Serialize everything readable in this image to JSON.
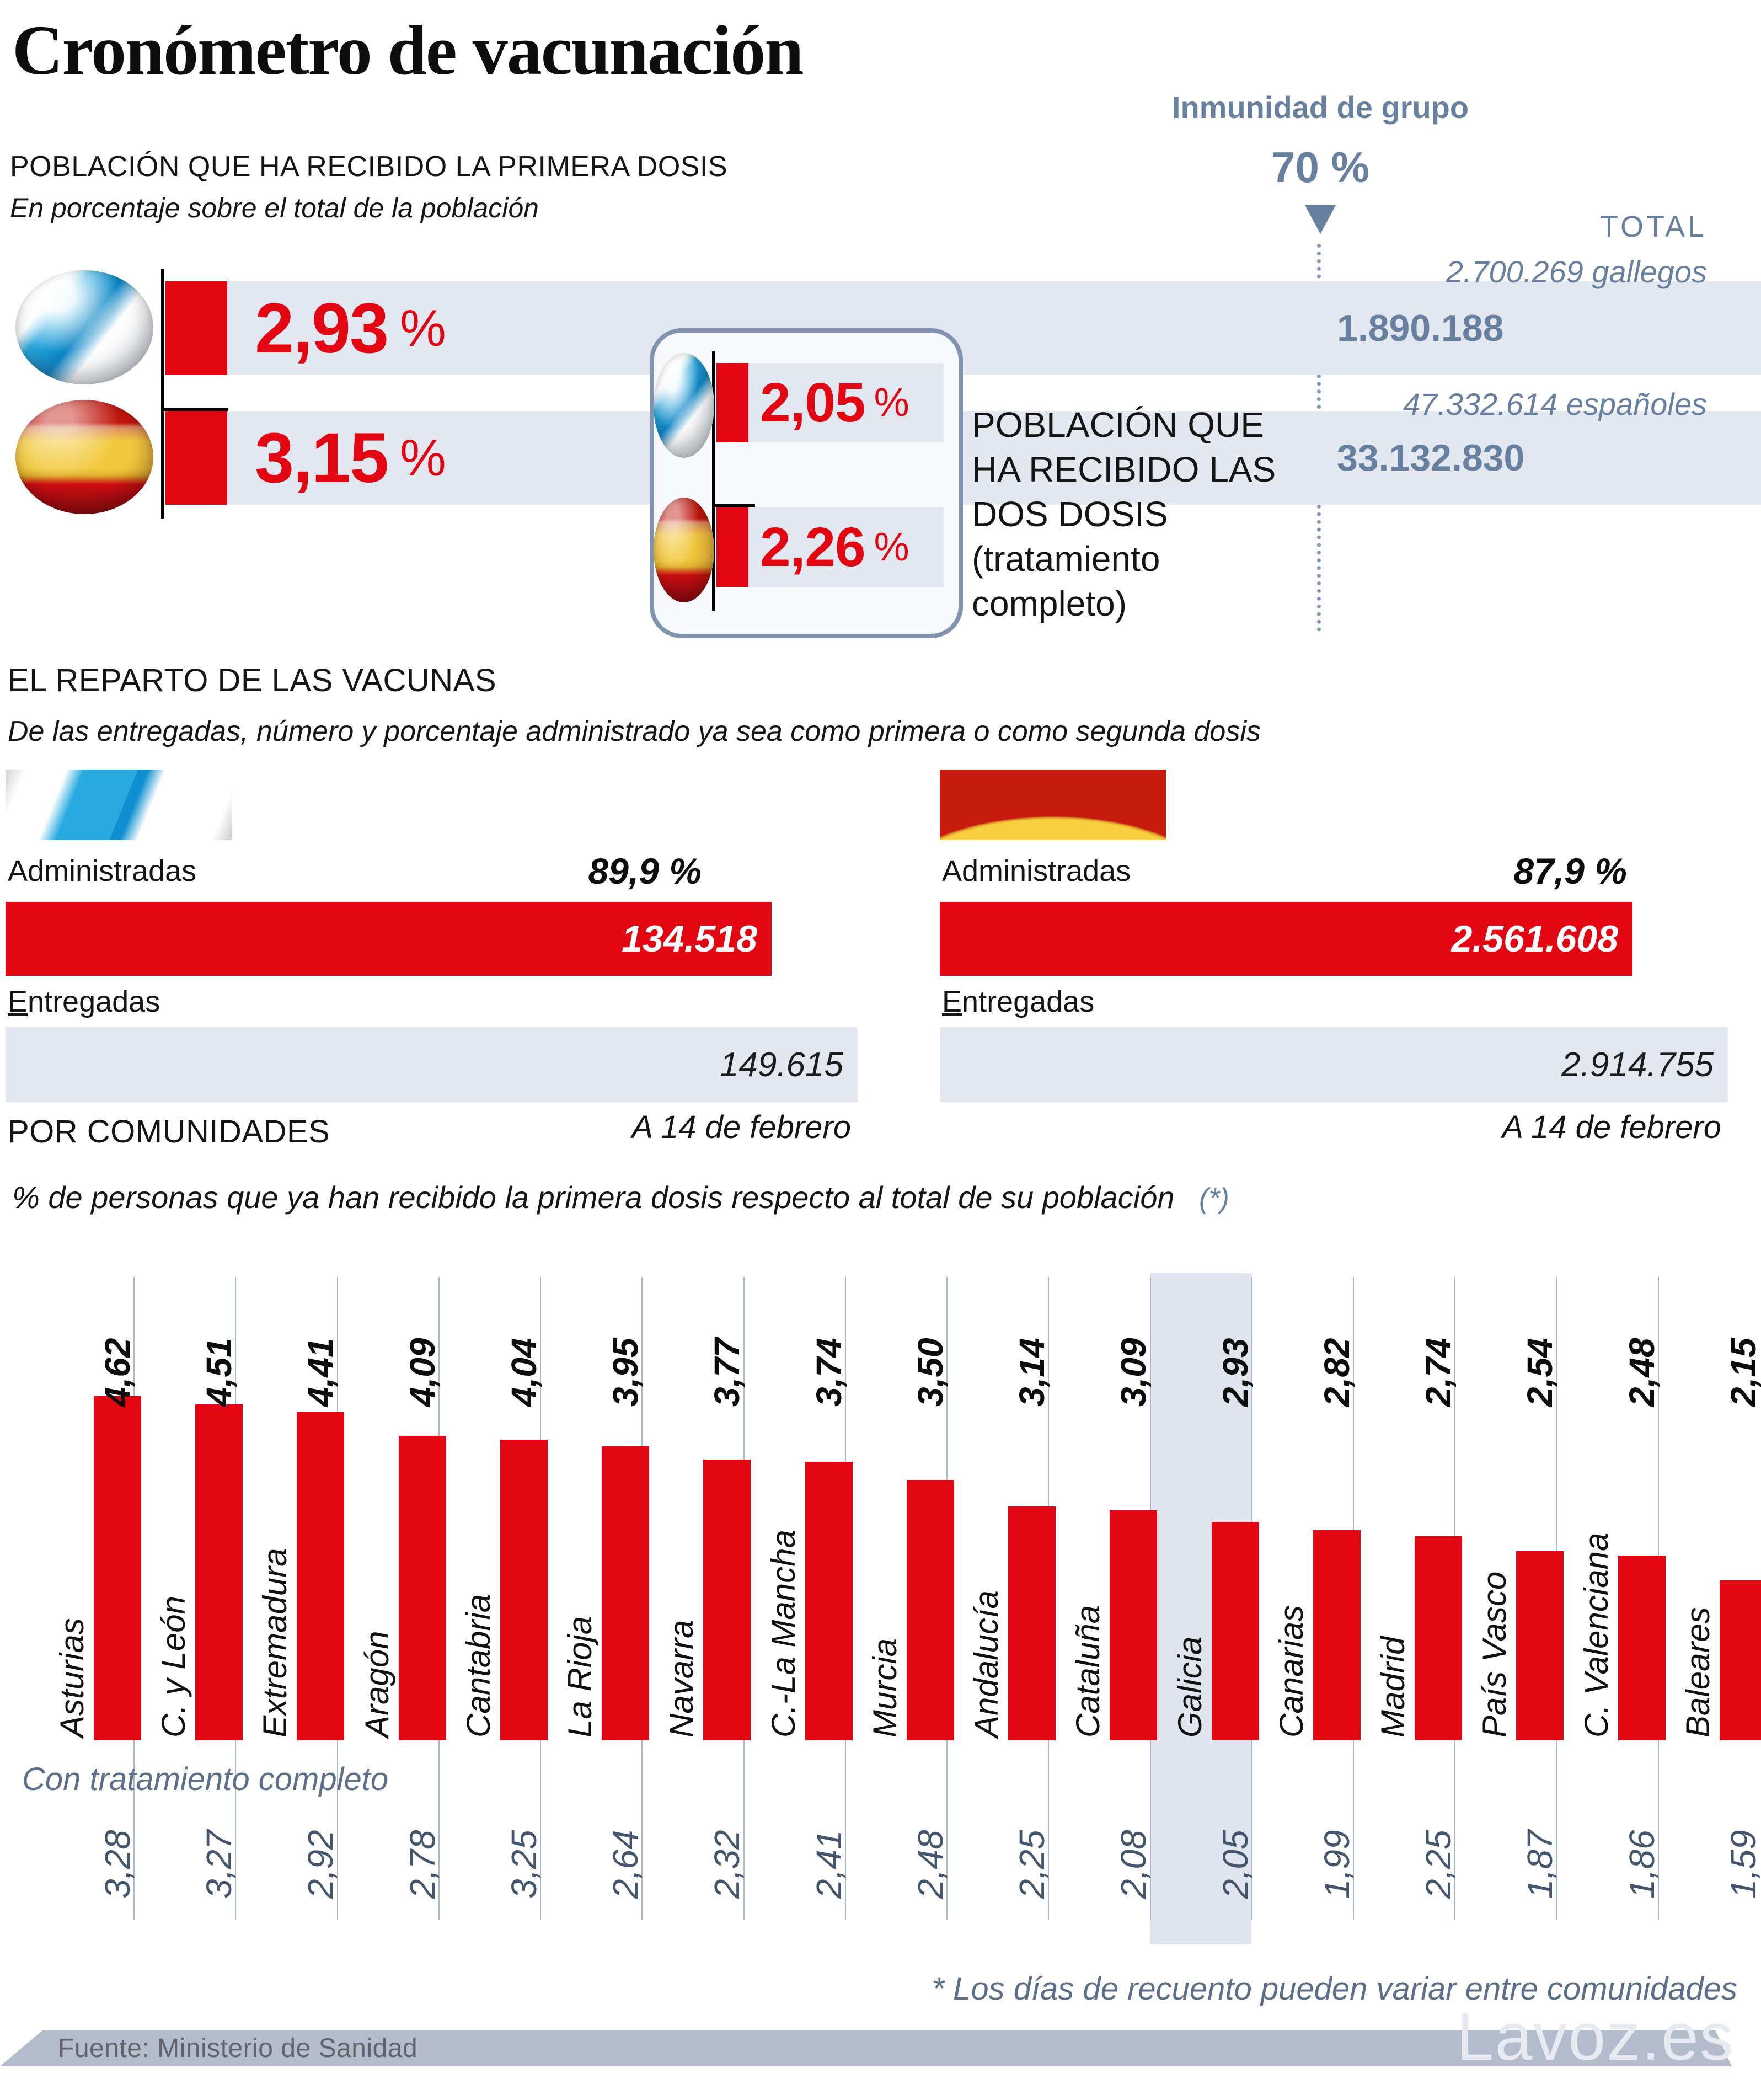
{
  "page": {
    "title": "Cronómetro de vacunación",
    "source": "Fuente: Ministerio de Sanidad",
    "watermark": "Lavoz.es",
    "footnote": "* Los días de recuento pueden variar entre comunidades"
  },
  "symbols": {
    "pct": "%"
  },
  "first_dose": {
    "heading": "POBLACIÓN QUE HA RECIBIDO LA PRIMERA DOSIS",
    "subheading": "En porcentaje sobre el total de la población",
    "galicia_pct": "2,93",
    "spain_pct": "3,15"
  },
  "herd": {
    "label": "Inmunidad de grupo",
    "value": "70 %",
    "total_label": "TOTAL",
    "galicia_population": "2.700.269 gallegos",
    "galicia_target": "1.890.188",
    "spain_population": "47.332.614 españoles",
    "spain_target": "33.132.830"
  },
  "second_dose": {
    "galicia_pct": "2,05",
    "spain_pct": "2,26",
    "side_note": "POBLACIÓN QUE HA RECIBIDO LAS DOS DOSIS (tratamiento completo)"
  },
  "distribution": {
    "heading": "EL REPARTO DE LAS VACUNAS",
    "subheading": "De las entregadas, número y porcentaje administrado ya sea como primera o como segunda dosis",
    "administered_label": "Administradas",
    "delivered_label": "Entregadas",
    "as_of": "A 14 de febrero",
    "galicia": {
      "administered_pct": "89,9 %",
      "administered": "134.518",
      "delivered": "149.615"
    },
    "spain": {
      "administered_pct": "87,9 %",
      "administered": "2.561.608",
      "delivered": "2.914.755"
    }
  },
  "chart_data": {
    "type": "bar",
    "title": "POR COMUNIDADES",
    "subtitle": "% de personas que ya han recibido la primera dosis respecto al total de su población",
    "note_symbol": "(*)",
    "categories": [
      "Asturias",
      "C. y León",
      "Extremadura",
      "Aragón",
      "Cantabria",
      "La Rioja",
      "Navarra",
      "C.-La Mancha",
      "Murcia",
      "Andalucía",
      "Cataluña",
      "Galicia",
      "Canarias",
      "Madrid",
      "País Vasco",
      "C. Valenciana",
      "Baleares"
    ],
    "series": [
      {
        "name": "Primera dosis (%)",
        "values": [
          4.62,
          4.51,
          4.41,
          4.09,
          4.04,
          3.95,
          3.77,
          3.74,
          3.5,
          3.14,
          3.09,
          2.93,
          2.82,
          2.74,
          2.54,
          2.48,
          2.15
        ],
        "labels": [
          "4,62",
          "4,51",
          "4,41",
          "4,09",
          "4,04",
          "3,95",
          "3,77",
          "3,74",
          "3,50",
          "3,14",
          "3,09",
          "2,93",
          "2,82",
          "2,74",
          "2,54",
          "2,48",
          "2,15"
        ]
      },
      {
        "name": "Con tratamiento completo (%)",
        "values": [
          3.28,
          3.27,
          2.92,
          2.78,
          3.25,
          2.64,
          2.32,
          2.41,
          2.48,
          2.25,
          2.08,
          2.05,
          1.99,
          2.25,
          1.87,
          1.86,
          1.59
        ],
        "labels": [
          "3,28",
          "3,27",
          "2,92",
          "2,78",
          "3,25",
          "2,64",
          "2,32",
          "2,41",
          "2,48",
          "2,25",
          "2,08",
          "2,05",
          "1,99",
          "2,25",
          "1,87",
          "1,86",
          "1,59"
        ]
      }
    ],
    "secondary_label": "Con tratamiento completo",
    "highlighted_category": "Galicia",
    "ylim": [
      0,
      5
    ],
    "grid": "vertical-separators",
    "legend": "none"
  },
  "colors": {
    "red": "#e20613",
    "band": "#e3e7f0",
    "highlight": "#dfe4ef",
    "slate": "#68809f",
    "slate_dark": "#44566e",
    "grid": "#a9b6cc",
    "footer_bar": "#b3bbcc"
  }
}
